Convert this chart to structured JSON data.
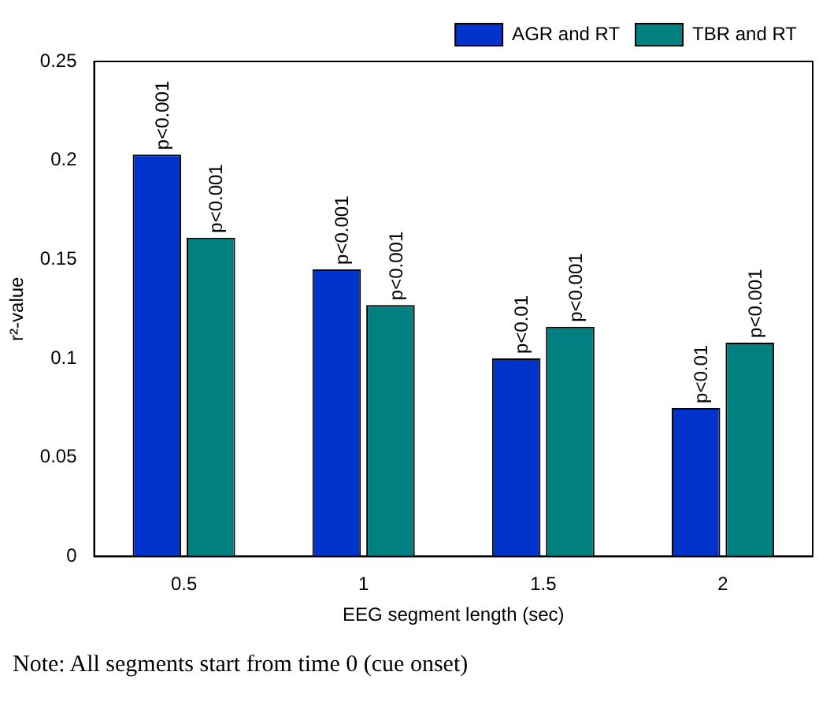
{
  "chart_data": {
    "type": "bar",
    "xlabel": "EEG segment length (sec)",
    "ylabel": "r²-value",
    "categories": [
      "0.5",
      "1",
      "1.5",
      "2"
    ],
    "series": [
      {
        "name": "AGR and RT",
        "color": "#0033cc",
        "values": [
          0.203,
          0.145,
          0.1,
          0.075
        ],
        "value_labels": [
          "p<0.001",
          "p<0.001",
          "p<0.01",
          "p<0.01"
        ]
      },
      {
        "name": "TBR and RT",
        "color": "#008080",
        "values": [
          0.161,
          0.127,
          0.116,
          0.108
        ],
        "value_labels": [
          "p<0.001",
          "p<0.001",
          "p<0.001",
          "p<0.001"
        ]
      }
    ],
    "ylim": [
      0,
      0.25
    ],
    "yticks": [
      0,
      0.05,
      0.1,
      0.15,
      0.2,
      0.25
    ],
    "grid": false,
    "legend": "top right",
    "annotations": [
      "Note: All segments start from time 0 (cue onset)"
    ]
  }
}
